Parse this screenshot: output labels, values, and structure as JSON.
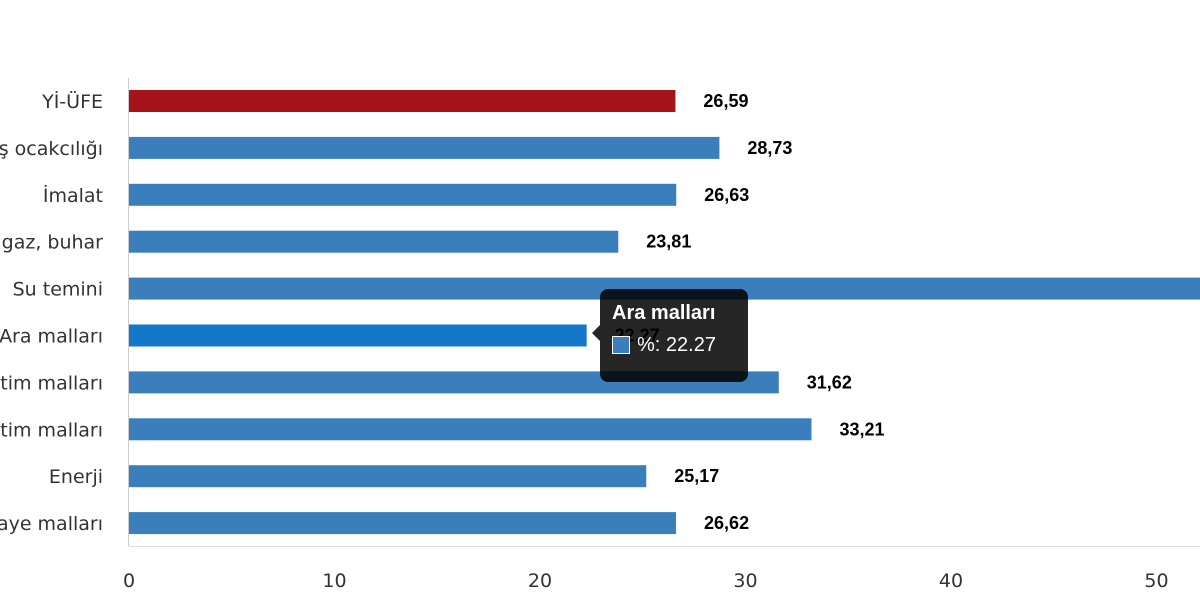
{
  "chart_data": {
    "type": "bar",
    "orientation": "horizontal",
    "categories": [
      "Yİ-ÜFE",
      "ş ocakcılığı",
      "İmalat",
      "gaz, buhar",
      "Su temini",
      "Ara malları",
      "tim malları",
      "tim malları",
      "Enerji",
      "aye malları"
    ],
    "series": [
      {
        "values": [
          26.59,
          28.73,
          26.63,
          23.81,
          56.0,
          22.27,
          31.62,
          33.21,
          25.17,
          26.62
        ],
        "data_labels": [
          "26,59",
          "28,73",
          "26,63",
          "23,81",
          "",
          "22,27",
          "31,62",
          "33,21",
          "25,17",
          "26,62"
        ]
      }
    ],
    "bar_colors": [
      "#a6131b",
      "#3a7fbb",
      "#3a7fbb",
      "#3a7fbb",
      "#3a7fbb",
      "#1577c9",
      "#3a7fbb",
      "#3a7fbb",
      "#3a7fbb",
      "#3a7fbb"
    ],
    "xlim": [
      0,
      52
    ],
    "x_ticks": [
      0,
      10,
      20,
      30,
      40,
      50
    ],
    "x_tick_labels": [
      "0",
      "10",
      "20",
      "30",
      "40",
      "50"
    ],
    "grid": false,
    "legend": "none",
    "tooltip": {
      "title": "Ara malları",
      "text": "%: 22.27",
      "swatch_color": "#3a7fbb"
    }
  }
}
